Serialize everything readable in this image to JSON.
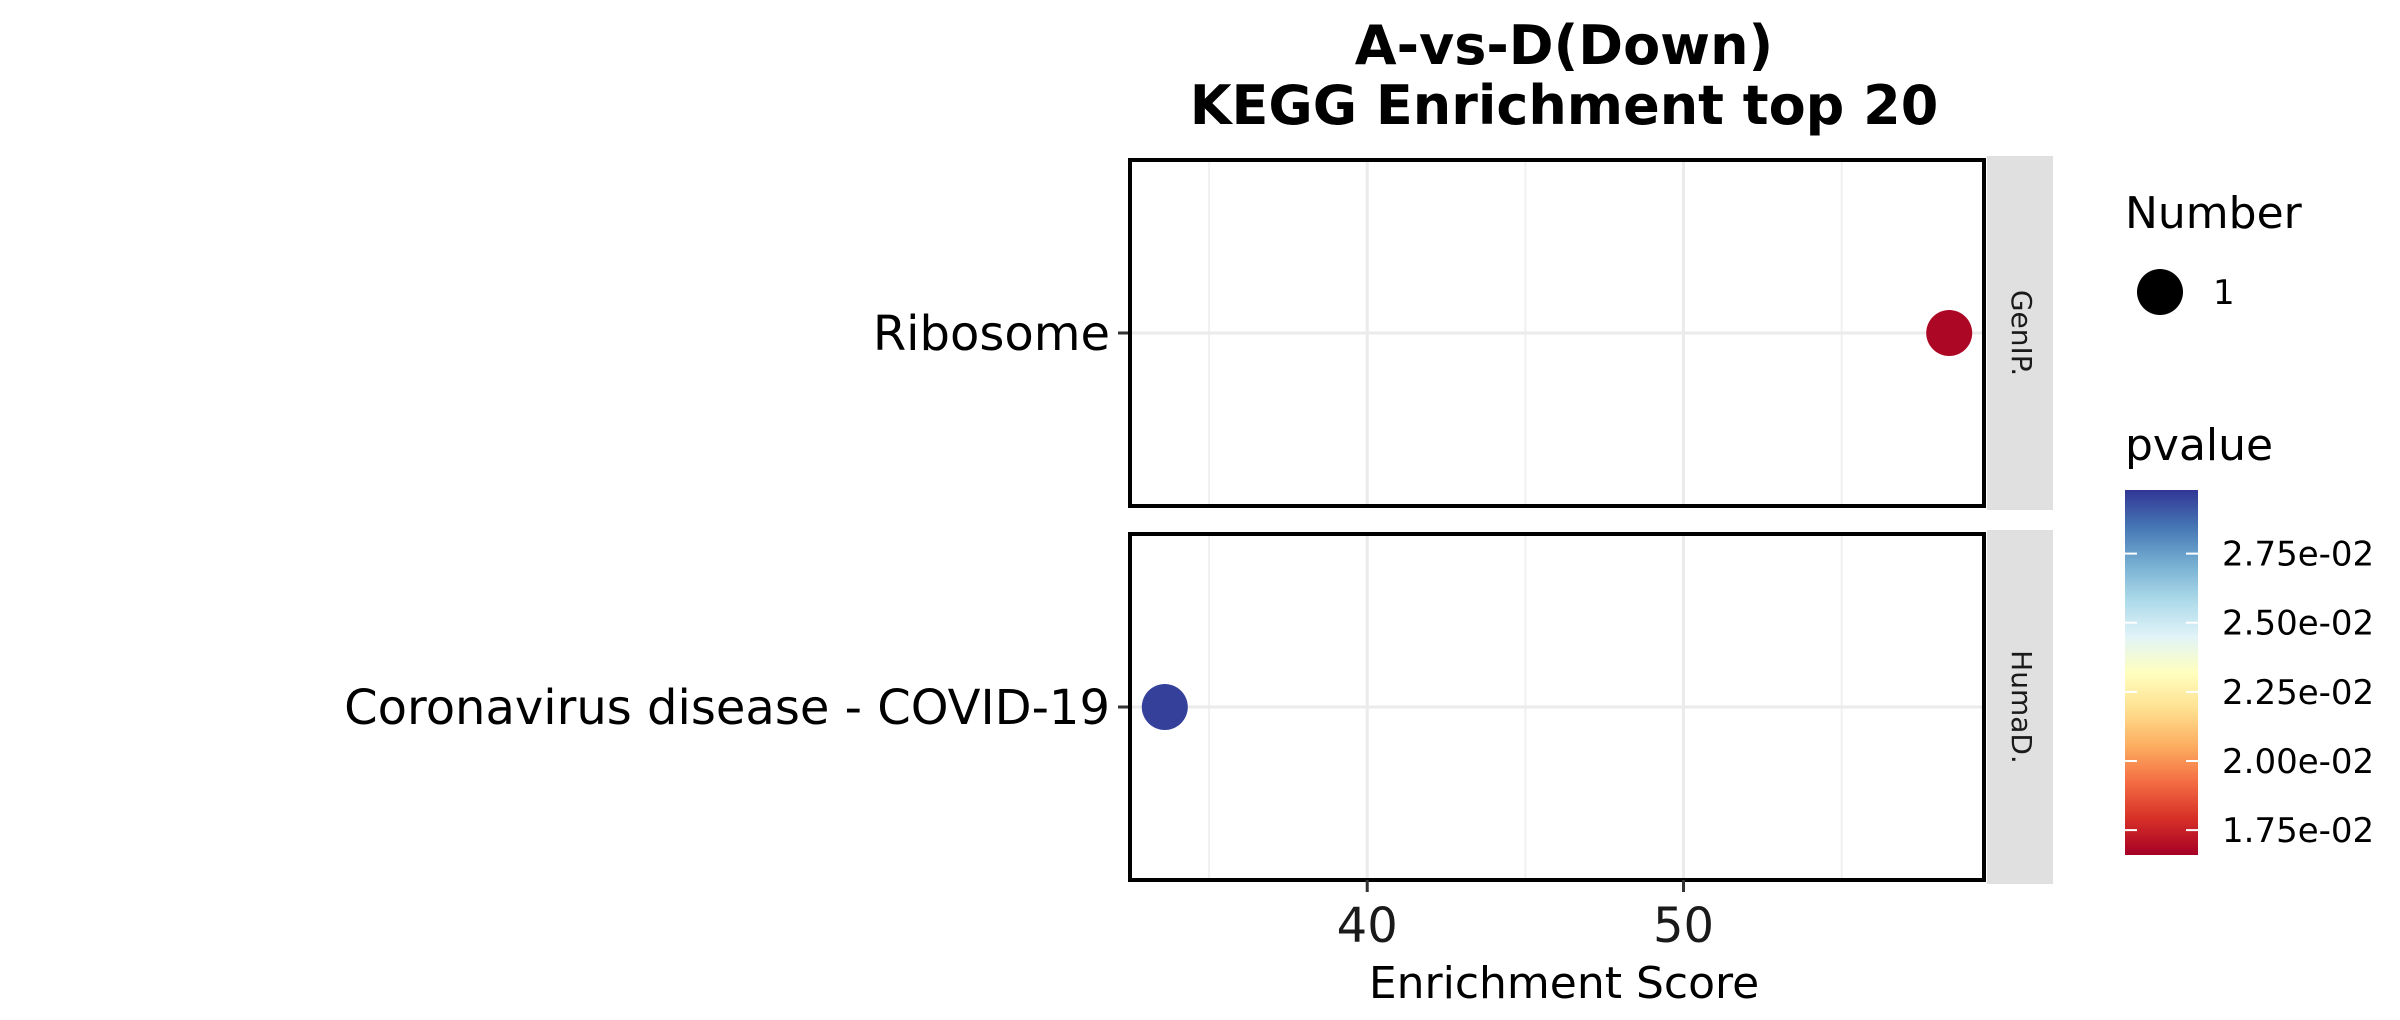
{
  "chart_data": {
    "type": "scatter",
    "title_line1": "A-vs-D(Down)",
    "title_line2": "KEGG Enrichment top 20",
    "xlabel": "Enrichment Score",
    "ylabel": "",
    "xlim": [
      32.5,
      59.5
    ],
    "x_ticks": [
      40,
      50
    ],
    "x_tick_labels": [
      "40",
      "50"
    ],
    "x_minor_ticks": [
      35,
      45,
      55
    ],
    "grid": true,
    "panels": [
      {
        "strip": "GenIP.",
        "categories": [
          "Ribosome"
        ],
        "points": [
          {
            "category": "Ribosome",
            "x": 58.4,
            "pvalue": 0.0168,
            "number": 1
          }
        ]
      },
      {
        "strip": "HumaD.",
        "categories": [
          "Coronavirus disease - COVID-19"
        ],
        "points": [
          {
            "category": "Coronavirus disease - COVID-19",
            "x": 33.6,
            "pvalue": 0.0296,
            "number": 1
          }
        ]
      }
    ],
    "legend_size": {
      "title": "Number",
      "entries": [
        {
          "label": "1",
          "value": 1
        }
      ]
    },
    "legend_color": {
      "title": "pvalue",
      "range": [
        0.0166,
        0.0298
      ],
      "ticks": [
        0.0175,
        0.02,
        0.0225,
        0.025,
        0.0275
      ],
      "tick_labels": [
        "1.75e-02",
        "2.00e-02",
        "2.25e-02",
        "2.50e-02",
        "2.75e-02"
      ],
      "colors_low_to_high": [
        "#a50026",
        "#d73027",
        "#f46d43",
        "#fdae61",
        "#fee090",
        "#ffffbf",
        "#e0f3f8",
        "#abd9e9",
        "#74add1",
        "#4575b4",
        "#313695"
      ]
    },
    "legend_placement": "right"
  }
}
